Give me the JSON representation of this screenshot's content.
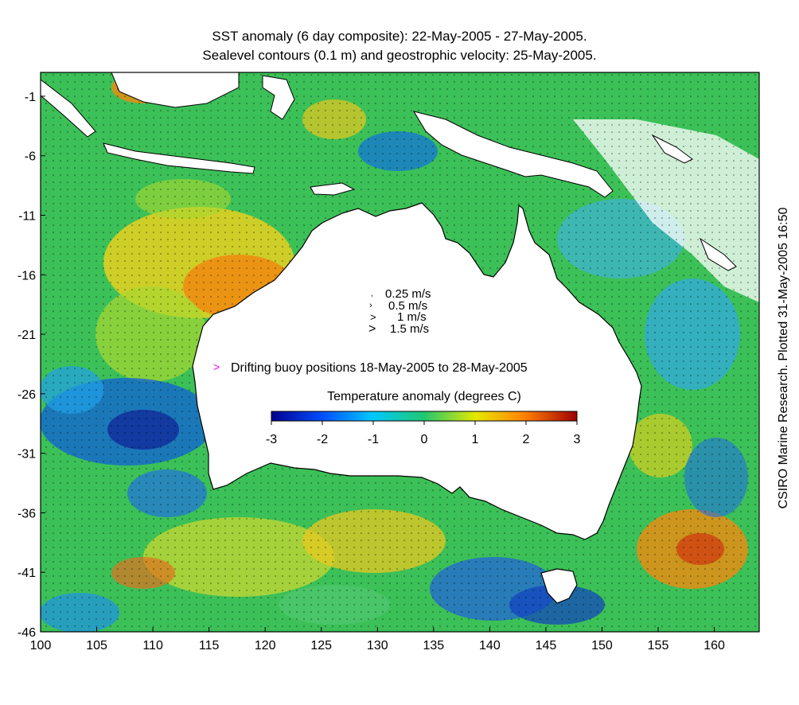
{
  "title": {
    "line1": "SST anomaly (6 day composite): 22-May-2005 - 27-May-2005.",
    "line2": "Sealevel contours (0.1 m) and geostrophic velocity: 25-May-2005."
  },
  "credit": "CSIRO Marine Research. Plotted 31-May-2005 16:50",
  "axes": {
    "x_ticks": [
      "100",
      "105",
      "110",
      "115",
      "120",
      "125",
      "130",
      "135",
      "140",
      "145",
      "150",
      "155",
      "160"
    ],
    "y_ticks": [
      "-1",
      "-6",
      "-11",
      "-16",
      "-21",
      "-26",
      "-31",
      "-36",
      "-41",
      "-46"
    ],
    "lon_range": [
      100,
      164
    ],
    "lat_range": [
      -46,
      1
    ]
  },
  "velocity_legend": {
    "items": [
      "0.25 m/s",
      "0.5 m/s",
      "1 m/s",
      "1.5 m/s"
    ]
  },
  "buoy_legend": {
    "symbol": ">",
    "label": "Drifting buoy positions 18-May-2005 to 28-May-2005",
    "color": "#e000e0"
  },
  "colorbar": {
    "title": "Temperature anomaly (degrees C)",
    "ticks": [
      "-3",
      "-2",
      "-1",
      "0",
      "1",
      "2",
      "3"
    ],
    "range": [
      -3,
      3
    ],
    "colors": [
      "#00008f",
      "#0050ff",
      "#00c8ff",
      "#20c870",
      "#e8e800",
      "#ff8000",
      "#a00000"
    ]
  }
}
